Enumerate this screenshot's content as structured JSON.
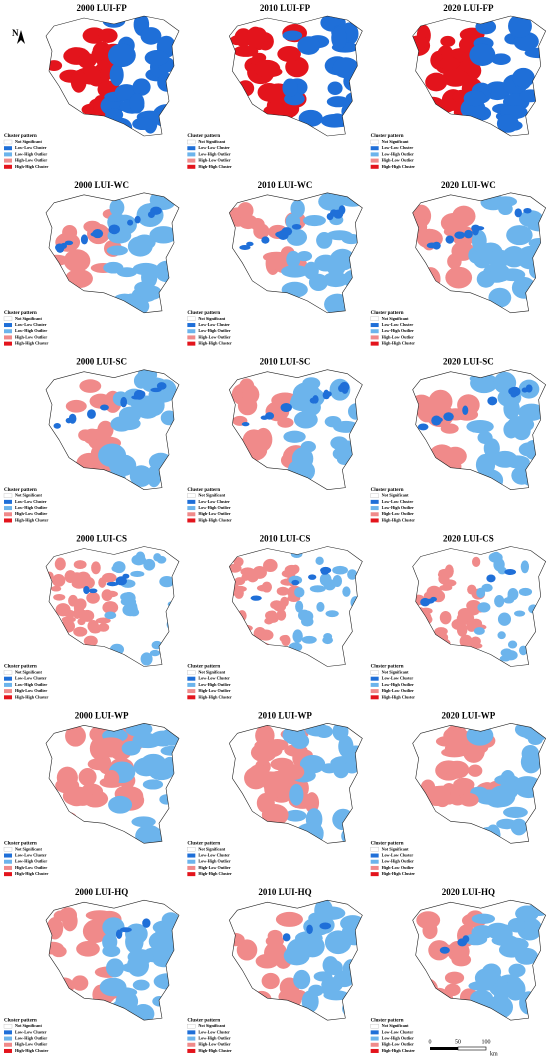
{
  "north": "N",
  "panels": [
    "2000 LUI-FP",
    "2010 LUI-FP",
    "2020 LUI-FP",
    "2000 LUI-WC",
    "2010 LUI-WC",
    "2020 LUI-WC",
    "2000 LUI-SC",
    "2010 LUI-SC",
    "2020 LUI-SC",
    "2000 LUI-CS",
    "2010 LUI-CS",
    "2020 LUI-CS",
    "2000 LUI-WP",
    "2010 LUI-WP",
    "2020 LUI-WP",
    "2000 LUI-HQ",
    "2010 LUI-HQ",
    "2020 LUI-HQ"
  ],
  "legend": {
    "title": "Cluster pattern",
    "items": [
      {
        "label": "Not Significant",
        "color": "#ffffff"
      },
      {
        "label": "Low-Low Cluster",
        "color": "#1f6fd8"
      },
      {
        "label": "Low-High Outlier",
        "color": "#6cb4ec"
      },
      {
        "label": "High-Low Outlier",
        "color": "#f08a8a"
      },
      {
        "label": "High-High Cluster",
        "color": "#e3141c"
      }
    ]
  },
  "scale_bar": {
    "ticks": [
      0,
      50,
      100
    ],
    "unit": "km"
  }
}
